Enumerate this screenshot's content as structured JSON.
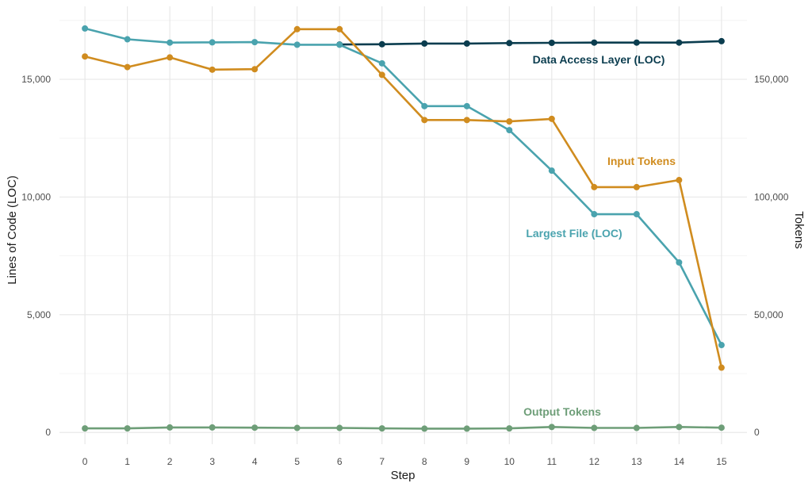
{
  "chart_data": {
    "type": "line",
    "xlabel": "Step",
    "ylabel_left": "Lines of Code (LOC)",
    "ylabel_right": "Tokens",
    "x": [
      0,
      1,
      2,
      3,
      4,
      5,
      6,
      7,
      8,
      9,
      10,
      11,
      12,
      13,
      14,
      15
    ],
    "xlim": [
      -0.6,
      15.6
    ],
    "ylim_left": [
      -500,
      18100
    ],
    "ylim_right": [
      -5000,
      181000
    ],
    "y_ticks_left": [
      "0",
      "5,000",
      "10,000",
      "15,000"
    ],
    "y_ticks_right": [
      "0",
      "50,000",
      "100,000",
      "150,000"
    ],
    "x_ticks": [
      "0",
      "1",
      "2",
      "3",
      "4",
      "5",
      "6",
      "7",
      "8",
      "9",
      "10",
      "11",
      "12",
      "13",
      "14",
      "15"
    ],
    "grid": true,
    "series": [
      {
        "name": "Data Access Layer (LOC)",
        "axis": "left",
        "color": "#0b3d4f",
        "x": [
          6,
          7,
          8,
          9,
          10,
          11,
          12,
          13,
          14,
          15
        ],
        "values": [
          16480,
          16490,
          16520,
          16520,
          16540,
          16550,
          16560,
          16560,
          16560,
          16620
        ]
      },
      {
        "name": "Largest File (LOC)",
        "axis": "left",
        "color": "#4aa3ae",
        "x": [
          0,
          1,
          2,
          3,
          4,
          5,
          6,
          7,
          8,
          9,
          10,
          11,
          12,
          13,
          14,
          15
        ],
        "values": [
          17160,
          16700,
          16560,
          16570,
          16580,
          16470,
          16470,
          15680,
          13860,
          13860,
          12840,
          11120,
          9270,
          9270,
          7220,
          3710
        ]
      },
      {
        "name": "Input Tokens",
        "axis": "right",
        "color": "#d08c1f",
        "x": [
          0,
          1,
          2,
          3,
          4,
          5,
          6,
          7,
          8,
          9,
          10,
          11,
          12,
          13,
          14,
          15
        ],
        "values": [
          159700,
          155200,
          159300,
          154100,
          154300,
          171300,
          171300,
          151900,
          132700,
          132700,
          132100,
          133200,
          104200,
          104200,
          107200,
          27500
        ]
      },
      {
        "name": "Output Tokens",
        "axis": "right",
        "color": "#6e9e78",
        "x": [
          0,
          1,
          2,
          3,
          4,
          5,
          6,
          7,
          8,
          9,
          10,
          11,
          12,
          13,
          14,
          15
        ],
        "values": [
          1700,
          1700,
          2100,
          2100,
          2000,
          1900,
          1900,
          1700,
          1600,
          1600,
          1700,
          2300,
          1900,
          1900,
          2300,
          2000
        ]
      }
    ]
  }
}
